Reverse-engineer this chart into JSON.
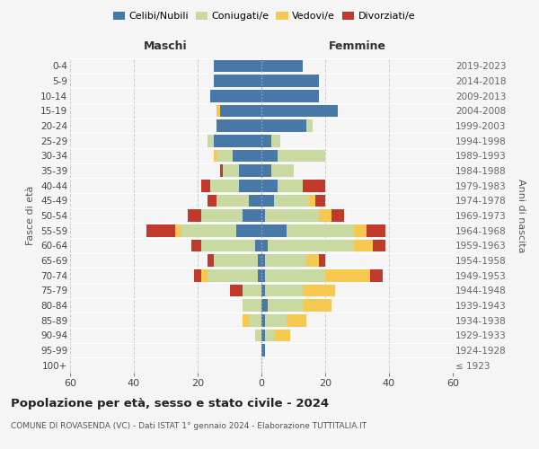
{
  "age_groups": [
    "100+",
    "95-99",
    "90-94",
    "85-89",
    "80-84",
    "75-79",
    "70-74",
    "65-69",
    "60-64",
    "55-59",
    "50-54",
    "45-49",
    "40-44",
    "35-39",
    "30-34",
    "25-29",
    "20-24",
    "15-19",
    "10-14",
    "5-9",
    "0-4"
  ],
  "birth_years": [
    "≤ 1923",
    "1924-1928",
    "1929-1933",
    "1934-1938",
    "1939-1943",
    "1944-1948",
    "1949-1953",
    "1954-1958",
    "1959-1963",
    "1964-1968",
    "1969-1973",
    "1974-1978",
    "1979-1983",
    "1984-1988",
    "1989-1993",
    "1994-1998",
    "1999-2003",
    "2004-2008",
    "2009-2013",
    "2014-2018",
    "2019-2023"
  ],
  "colors": {
    "celibi": "#4878a8",
    "coniugati": "#c8d9a2",
    "vedovi": "#f5c850",
    "divorziati": "#c0392b"
  },
  "maschi": {
    "celibi": [
      0,
      0,
      0,
      0,
      0,
      0,
      1,
      1,
      2,
      8,
      6,
      4,
      7,
      7,
      9,
      15,
      14,
      13,
      16,
      15,
      15
    ],
    "coniugati": [
      0,
      0,
      2,
      4,
      6,
      6,
      16,
      14,
      17,
      17,
      13,
      10,
      9,
      5,
      5,
      2,
      0,
      0,
      0,
      0,
      0
    ],
    "vedovi": [
      0,
      0,
      0,
      2,
      0,
      0,
      2,
      0,
      0,
      2,
      0,
      0,
      0,
      0,
      1,
      0,
      0,
      1,
      0,
      0,
      0
    ],
    "divorziati": [
      0,
      0,
      0,
      0,
      0,
      4,
      2,
      2,
      3,
      9,
      4,
      3,
      3,
      1,
      0,
      0,
      0,
      0,
      0,
      0,
      0
    ]
  },
  "femmine": {
    "nubili": [
      0,
      1,
      1,
      1,
      2,
      1,
      1,
      1,
      2,
      8,
      1,
      4,
      5,
      3,
      5,
      3,
      14,
      24,
      18,
      18,
      13
    ],
    "coniugate": [
      0,
      0,
      3,
      7,
      11,
      12,
      19,
      13,
      27,
      21,
      17,
      11,
      8,
      7,
      15,
      3,
      2,
      0,
      0,
      0,
      0
    ],
    "vedove": [
      0,
      0,
      5,
      6,
      9,
      10,
      14,
      4,
      6,
      4,
      4,
      2,
      0,
      0,
      0,
      0,
      0,
      0,
      0,
      0,
      0
    ],
    "divorziate": [
      0,
      0,
      0,
      0,
      0,
      0,
      4,
      2,
      4,
      6,
      4,
      3,
      7,
      0,
      0,
      0,
      0,
      0,
      0,
      0,
      0
    ]
  },
  "title": "Popolazione per età, sesso e stato civile - 2024",
  "subtitle": "COMUNE DI ROVASENDA (VC) - Dati ISTAT 1° gennaio 2024 - Elaborazione TUTTITALIA.IT",
  "label_maschi": "Maschi",
  "label_femmine": "Femmine",
  "ylabel_left": "Fasce di età",
  "ylabel_right": "Anni di nascita",
  "xlim": 60,
  "legend_labels": [
    "Celibi/Nubili",
    "Coniugati/e",
    "Vedovi/e",
    "Divorziati/e"
  ],
  "bg_color": "#f5f5f5"
}
